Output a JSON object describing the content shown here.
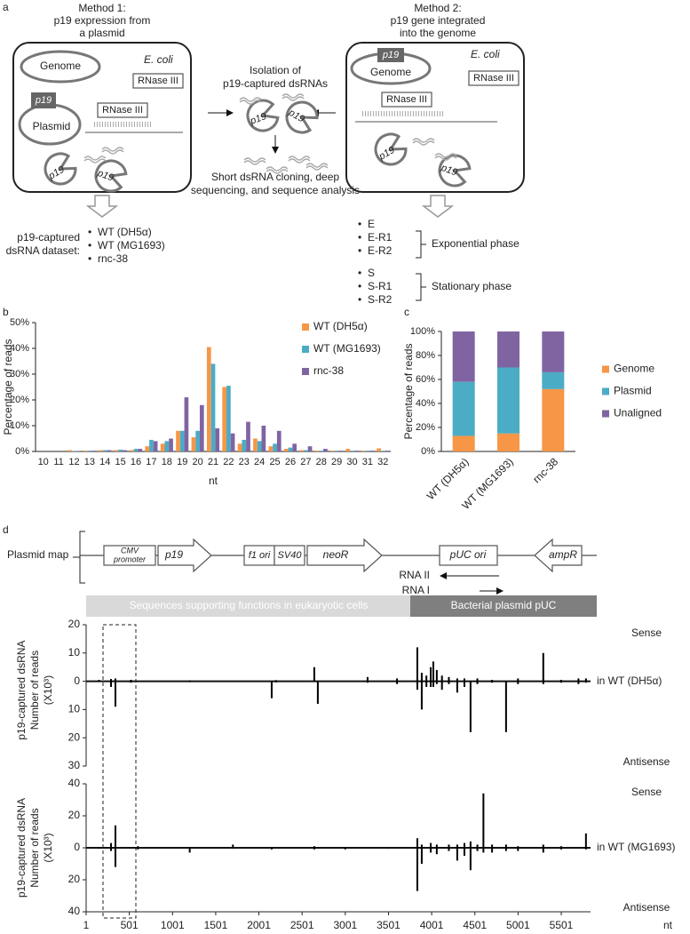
{
  "panel_labels": [
    "a",
    "b",
    "c",
    "d"
  ],
  "panel_a": {
    "method1": [
      "Method 1:",
      "p19 expression from",
      "a plasmid"
    ],
    "method2": [
      "Method 2:",
      "p19 gene integrated",
      "into the genome"
    ],
    "genome": "Genome",
    "ecoli": "E. coli",
    "p19": "p19",
    "plasmid": "Plasmid",
    "rnase": "RNase III",
    "isolation": [
      "Isolation of",
      "p19-captured dsRNAs"
    ],
    "analysis": [
      "Short dsRNA cloning, deep",
      "sequencing, and sequence analysis"
    ],
    "dataset_label": [
      "p19-captured",
      "dsRNA dataset:"
    ],
    "bullet": "•",
    "datasets_1": [
      "WT (DH5α)",
      "WT (MG1693)",
      "rnc-38"
    ],
    "datasets_2": [
      "E",
      "E-R1",
      "E-R2",
      "S",
      "S-R1",
      "S-R2"
    ],
    "phases": [
      "Exponential phase",
      "Stationary phase"
    ]
  },
  "plasmid_map": {
    "label": "Plasmid map",
    "cmv": [
      "CMV",
      "promoter"
    ],
    "p19": "p19",
    "f1": "f1 ori",
    "sv40": "SV40",
    "neo": "neoR",
    "puc": "pUC ori",
    "amp": "ampR",
    "rna2": "RNA II",
    "rna1": "RNA I",
    "regions": [
      "Sequences supporting functions in eukaryotic cells",
      "Bacterial plasmid pUC"
    ]
  },
  "chart_data": [
    {
      "type": "bar",
      "ylabel": "Percentage of reads",
      "xlabel": "nt",
      "categories": [
        "10",
        "11",
        "12",
        "13",
        "14",
        "15",
        "16",
        "17",
        "18",
        "19",
        "20",
        "21",
        "22",
        "23",
        "24",
        "25",
        "26",
        "27",
        "28",
        "29",
        "30",
        "31",
        "32"
      ],
      "series": [
        {
          "name": "WT (DH5α)",
          "color": "#f79646",
          "values": [
            0,
            0,
            0.5,
            0.3,
            0.5,
            0.5,
            0.5,
            2,
            3,
            8,
            5.5,
            40.5,
            25,
            3,
            5,
            2,
            1,
            0.5,
            0.3,
            0.3,
            1,
            0.3,
            1.2
          ]
        },
        {
          "name": "WT (MG1693)",
          "color": "#4bacc6",
          "values": [
            0,
            0,
            0.2,
            0.3,
            0.5,
            0.7,
            1,
            4.5,
            4,
            8,
            8,
            34,
            25.5,
            4.5,
            4,
            3,
            1.5,
            0.5,
            0.3,
            0.3,
            0.3,
            0.3,
            0.3
          ]
        },
        {
          "name": "rnc-38",
          "color": "#8064a2",
          "values": [
            0,
            0,
            0.2,
            0.3,
            0.5,
            0.5,
            1,
            4,
            5,
            21,
            18,
            9,
            7,
            11.5,
            10,
            8,
            3,
            2,
            1,
            0.3,
            0.3,
            0.3,
            0.3
          ]
        }
      ],
      "ylim": [
        0,
        50
      ],
      "yticks": [
        {
          "value": 0,
          "label": "0%"
        },
        {
          "value": 10,
          "label": "10%"
        },
        {
          "value": 20,
          "label": "20%"
        },
        {
          "value": 30,
          "label": "30%"
        },
        {
          "value": 40,
          "label": "40%"
        },
        {
          "value": 50,
          "label": "50%"
        }
      ],
      "legend": "top-right"
    },
    {
      "type": "bar",
      "stacked": true,
      "ylabel": "Percentage of reads",
      "categories": [
        "WT (DH5α)",
        "WT (MG1693)",
        "rnc-38"
      ],
      "series": [
        {
          "name": "Genome",
          "color": "#f79646",
          "values": [
            13,
            15,
            52
          ]
        },
        {
          "name": "Plasmid",
          "color": "#4bacc6",
          "values": [
            45,
            55,
            14
          ]
        },
        {
          "name": "Unaligned",
          "color": "#8064a2",
          "values": [
            42,
            30,
            34
          ]
        }
      ],
      "ylim": [
        0,
        100
      ],
      "yticks": [
        {
          "value": 0,
          "label": "0%"
        },
        {
          "value": 20,
          "label": "20%"
        },
        {
          "value": 40,
          "label": "40%"
        },
        {
          "value": 60,
          "label": "60%"
        },
        {
          "value": 80,
          "label": "80%"
        },
        {
          "value": 100,
          "label": "100%"
        }
      ],
      "legend": "right"
    },
    {
      "type": "bar",
      "ylabel": [
        "p19-captured dsRNA",
        "Number of reads",
        "(X10³)"
      ],
      "annotation": "in WT (DH5α)",
      "color": "#000000",
      "x": [
        150,
        289,
        340,
        520,
        1200,
        2149,
        2200,
        2642,
        2683,
        3259,
        3600,
        3835,
        3886,
        3940,
        3990,
        4020,
        4060,
        4120,
        4200,
        4297,
        4380,
        4451,
        4530,
        4700,
        4862,
        5000,
        5293,
        5500,
        5700,
        5787
      ],
      "series": [
        {
          "name": "Sense",
          "values": [
            0.5,
            0.8,
            1,
            0.5,
            0.3,
            null,
            0.4,
            5,
            null,
            1.5,
            1,
            12,
            3,
            2,
            5,
            7,
            4,
            2,
            1.5,
            1,
            1,
            null,
            1,
            0.5,
            null,
            1,
            10,
            0.5,
            1,
            1
          ]
        },
        {
          "name": "Antisense",
          "values": [
            null,
            -2,
            -9,
            -0.5,
            -0.3,
            -6,
            -0.4,
            null,
            -8,
            -0.5,
            -1,
            -3,
            -10,
            -2,
            -2,
            -2,
            -1,
            -3,
            -1,
            -4,
            -2,
            -18,
            -1,
            -0.5,
            -18,
            -1,
            -1,
            -0.5,
            -1,
            -0.5
          ]
        }
      ],
      "xlim": [
        1,
        5840
      ],
      "ylim": [
        -30,
        20
      ],
      "yticks": [
        20,
        10,
        0,
        {
          "value": -10,
          "label": "10"
        },
        {
          "value": -20,
          "label": "20"
        },
        {
          "value": -30,
          "label": "30"
        }
      ]
    },
    {
      "type": "bar",
      "ylabel": [
        "p19-captured dsRNA",
        "Number of reads",
        "(X10³)"
      ],
      "annotation": "in WT (MG1693)",
      "xlabel": "nt",
      "color": "#000000",
      "x": [
        150,
        289,
        340,
        600,
        1200,
        1700,
        2149,
        2642,
        3000,
        3500,
        3835,
        3886,
        3990,
        4060,
        4200,
        4297,
        4380,
        4451,
        4530,
        4600,
        4700,
        4862,
        5000,
        5293,
        5500,
        5787
      ],
      "series": [
        {
          "name": "Sense",
          "values": [
            0.5,
            3,
            14,
            1,
            0.5,
            2,
            0.5,
            1,
            0.5,
            0.5,
            6,
            2,
            3,
            2,
            2,
            2,
            3,
            4,
            2,
            34,
            2,
            2,
            1,
            2,
            1,
            9
          ]
        },
        {
          "name": "Antisense",
          "values": [
            -0.5,
            -2,
            -12,
            -1,
            -3,
            -0.5,
            -1,
            -1,
            -1,
            -0.5,
            -27,
            -10,
            -3,
            -4,
            -2,
            -8,
            -5,
            -14,
            -2,
            -3,
            -3,
            -2,
            -2,
            -3,
            -1,
            -1
          ]
        }
      ],
      "xlim": [
        1,
        5840
      ],
      "ylim": [
        -40,
        40
      ],
      "xticks": [
        1,
        501,
        1001,
        1501,
        2001,
        2501,
        3001,
        3501,
        4001,
        4501,
        5001,
        5501
      ],
      "yticks": [
        40,
        20,
        0,
        {
          "value": -20,
          "label": "20"
        },
        {
          "value": -40,
          "label": "40"
        }
      ]
    }
  ]
}
